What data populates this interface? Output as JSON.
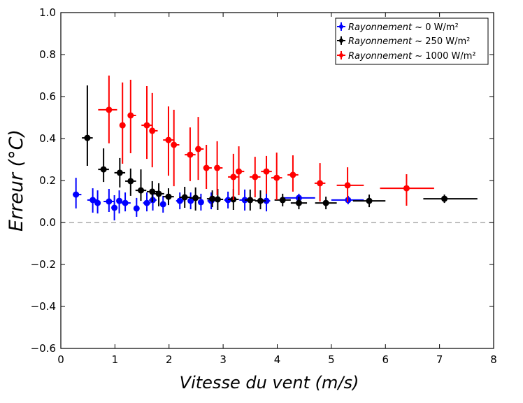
{
  "chart_data": {
    "type": "scatter",
    "title": "",
    "xlabel": "Vitesse du vent (m/s)",
    "ylabel": "Erreur (°C)",
    "xlim": [
      0,
      8
    ],
    "ylim": [
      -0.6,
      1.0
    ],
    "xticks": [
      "0",
      "1",
      "2",
      "3",
      "4",
      "5",
      "6",
      "7",
      "8"
    ],
    "yticks": [
      "−0.6",
      "−0.4",
      "−0.2",
      "0.0",
      "0.2",
      "0.4",
      "0.6",
      "0.8",
      "1.0"
    ],
    "xtick_values": [
      0,
      1,
      2,
      3,
      4,
      5,
      6,
      7,
      8
    ],
    "ytick_values": [
      -0.6,
      -0.4,
      -0.2,
      0.0,
      0.2,
      0.4,
      0.6,
      0.8,
      1.0
    ],
    "grid": false,
    "reference_line": {
      "y": 0.0,
      "style": "dashed",
      "color": "#999999"
    },
    "legend_position": "top-right",
    "series": [
      {
        "name": "Rayonnement ~ 0 W/m²",
        "legend_italic": "Rayonnement",
        "legend_rest": " ~ 0 W/m²",
        "color": "#0000ff",
        "points": [
          {
            "x": 0.28,
            "y": 0.133,
            "ylo": 0.067,
            "yhi": 0.213,
            "xlo": 0.22,
            "xhi": 0.38
          },
          {
            "x": 0.59,
            "y": 0.107,
            "ylo": 0.047,
            "yhi": 0.163,
            "xlo": 0.49,
            "xhi": 0.69
          },
          {
            "x": 0.68,
            "y": 0.093,
            "ylo": 0.043,
            "yhi": 0.153,
            "xlo": 0.63,
            "xhi": 0.73
          },
          {
            "x": 0.89,
            "y": 0.1,
            "ylo": 0.05,
            "yhi": 0.16,
            "xlo": 0.79,
            "xhi": 0.99
          },
          {
            "x": 0.99,
            "y": 0.07,
            "ylo": 0.01,
            "yhi": 0.13,
            "xlo": 0.94,
            "xhi": 1.04
          },
          {
            "x": 1.08,
            "y": 0.103,
            "ylo": 0.043,
            "yhi": 0.153,
            "xlo": 1.03,
            "xhi": 1.13
          },
          {
            "x": 1.19,
            "y": 0.093,
            "ylo": 0.053,
            "yhi": 0.143,
            "xlo": 1.12,
            "xhi": 1.29
          },
          {
            "x": 1.4,
            "y": 0.067,
            "ylo": 0.027,
            "yhi": 0.117,
            "xlo": 1.35,
            "xhi": 1.45
          },
          {
            "x": 1.59,
            "y": 0.093,
            "ylo": 0.053,
            "yhi": 0.143,
            "xlo": 1.52,
            "xhi": 1.66
          },
          {
            "x": 1.7,
            "y": 0.107,
            "ylo": 0.057,
            "yhi": 0.157,
            "xlo": 1.63,
            "xhi": 1.77
          },
          {
            "x": 1.89,
            "y": 0.087,
            "ylo": 0.047,
            "yhi": 0.127,
            "xlo": 1.84,
            "xhi": 1.94
          },
          {
            "x": 2.2,
            "y": 0.103,
            "ylo": 0.063,
            "yhi": 0.143,
            "xlo": 2.13,
            "xhi": 2.27
          },
          {
            "x": 2.4,
            "y": 0.103,
            "ylo": 0.063,
            "yhi": 0.143,
            "xlo": 2.35,
            "xhi": 2.45
          },
          {
            "x": 2.59,
            "y": 0.097,
            "ylo": 0.057,
            "yhi": 0.137,
            "xlo": 2.54,
            "xhi": 2.64
          },
          {
            "x": 2.78,
            "y": 0.103,
            "ylo": 0.063,
            "yhi": 0.143,
            "xlo": 2.71,
            "xhi": 2.85
          },
          {
            "x": 3.09,
            "y": 0.107,
            "ylo": 0.067,
            "yhi": 0.147,
            "xlo": 3.02,
            "xhi": 3.16
          },
          {
            "x": 3.4,
            "y": 0.107,
            "ylo": 0.057,
            "yhi": 0.157,
            "xlo": 3.3,
            "xhi": 3.5
          },
          {
            "x": 3.8,
            "y": 0.103,
            "ylo": 0.053,
            "yhi": 0.153,
            "xlo": 3.73,
            "xhi": 3.87
          },
          {
            "x": 4.4,
            "y": 0.117,
            "ylo": 0.097,
            "yhi": 0.137,
            "xlo": 4.1,
            "xhi": 4.7
          },
          {
            "x": 5.31,
            "y": 0.107,
            "ylo": 0.087,
            "yhi": 0.127,
            "xlo": 5.0,
            "xhi": 5.6
          }
        ]
      },
      {
        "name": "Rayonnement ~ 250 W/m²",
        "legend_italic": "Rayonnement",
        "legend_rest": " ~ 250 W/m²",
        "color": "#000000",
        "points": [
          {
            "x": 0.49,
            "y": 0.403,
            "ylo": 0.27,
            "yhi": 0.653,
            "xlo": 0.39,
            "xhi": 0.59
          },
          {
            "x": 0.79,
            "y": 0.253,
            "ylo": 0.193,
            "yhi": 0.353,
            "xlo": 0.69,
            "xhi": 0.89
          },
          {
            "x": 1.09,
            "y": 0.237,
            "ylo": 0.167,
            "yhi": 0.307,
            "xlo": 0.99,
            "xhi": 1.19
          },
          {
            "x": 1.29,
            "y": 0.197,
            "ylo": 0.127,
            "yhi": 0.257,
            "xlo": 1.19,
            "xhi": 1.39
          },
          {
            "x": 1.48,
            "y": 0.153,
            "ylo": 0.103,
            "yhi": 0.253,
            "xlo": 1.38,
            "xhi": 1.58
          },
          {
            "x": 1.69,
            "y": 0.147,
            "ylo": 0.097,
            "yhi": 0.197,
            "xlo": 1.59,
            "xhi": 1.79
          },
          {
            "x": 1.81,
            "y": 0.137,
            "ylo": 0.077,
            "yhi": 0.187,
            "xlo": 1.71,
            "xhi": 1.91
          },
          {
            "x": 1.99,
            "y": 0.123,
            "ylo": 0.083,
            "yhi": 0.163,
            "xlo": 1.89,
            "xhi": 2.09
          },
          {
            "x": 2.29,
            "y": 0.12,
            "ylo": 0.07,
            "yhi": 0.17,
            "xlo": 2.19,
            "xhi": 2.39
          },
          {
            "x": 2.49,
            "y": 0.117,
            "ylo": 0.057,
            "yhi": 0.167,
            "xlo": 2.39,
            "xhi": 2.59
          },
          {
            "x": 2.9,
            "y": 0.11,
            "ylo": 0.06,
            "yhi": 0.16,
            "xlo": 2.8,
            "xhi": 3.0
          },
          {
            "x": 2.8,
            "y": 0.113,
            "ylo": 0.073,
            "yhi": 0.153,
            "xlo": 2.7,
            "xhi": 2.9
          },
          {
            "x": 3.19,
            "y": 0.11,
            "ylo": 0.06,
            "yhi": 0.16,
            "xlo": 3.09,
            "xhi": 3.29
          },
          {
            "x": 3.5,
            "y": 0.107,
            "ylo": 0.057,
            "yhi": 0.157,
            "xlo": 3.4,
            "xhi": 3.6
          },
          {
            "x": 3.69,
            "y": 0.103,
            "ylo": 0.063,
            "yhi": 0.153,
            "xlo": 3.59,
            "xhi": 3.79
          },
          {
            "x": 4.1,
            "y": 0.107,
            "ylo": 0.077,
            "yhi": 0.137,
            "xlo": 3.95,
            "xhi": 4.25
          },
          {
            "x": 4.4,
            "y": 0.093,
            "ylo": 0.063,
            "yhi": 0.123,
            "xlo": 4.25,
            "xhi": 4.55
          },
          {
            "x": 4.9,
            "y": 0.093,
            "ylo": 0.063,
            "yhi": 0.123,
            "xlo": 4.7,
            "xhi": 5.1
          },
          {
            "x": 5.7,
            "y": 0.103,
            "ylo": 0.073,
            "yhi": 0.133,
            "xlo": 5.4,
            "xhi": 6.0
          },
          {
            "x": 7.09,
            "y": 0.113,
            "ylo": 0.093,
            "yhi": 0.133,
            "xlo": 6.7,
            "xhi": 7.7
          }
        ]
      },
      {
        "name": "Rayonnement ~ 1000 W/m²",
        "legend_italic": "Rayonnement",
        "legend_rest": " ~ 1000 W/m²",
        "color": "#ff0000",
        "points": [
          {
            "x": 0.89,
            "y": 0.537,
            "ylo": 0.377,
            "yhi": 0.7,
            "xlo": 0.69,
            "xhi": 1.04
          },
          {
            "x": 1.14,
            "y": 0.463,
            "ylo": 0.28,
            "yhi": 0.667,
            "xlo": 1.09,
            "xhi": 1.19
          },
          {
            "x": 1.29,
            "y": 0.51,
            "ylo": 0.33,
            "yhi": 0.68,
            "xlo": 1.24,
            "xhi": 1.39
          },
          {
            "x": 1.59,
            "y": 0.463,
            "ylo": 0.303,
            "yhi": 0.65,
            "xlo": 1.49,
            "xhi": 1.69
          },
          {
            "x": 1.69,
            "y": 0.437,
            "ylo": 0.263,
            "yhi": 0.617,
            "xlo": 1.64,
            "xhi": 1.79
          },
          {
            "x": 1.99,
            "y": 0.393,
            "ylo": 0.223,
            "yhi": 0.553,
            "xlo": 1.89,
            "xhi": 2.09
          },
          {
            "x": 2.09,
            "y": 0.37,
            "ylo": 0.173,
            "yhi": 0.537,
            "xlo": 2.04,
            "xhi": 2.19
          },
          {
            "x": 2.39,
            "y": 0.323,
            "ylo": 0.197,
            "yhi": 0.453,
            "xlo": 2.29,
            "xhi": 2.49
          },
          {
            "x": 2.54,
            "y": 0.35,
            "ylo": 0.203,
            "yhi": 0.503,
            "xlo": 2.49,
            "xhi": 2.64
          },
          {
            "x": 2.69,
            "y": 0.26,
            "ylo": 0.16,
            "yhi": 0.37,
            "xlo": 2.64,
            "xhi": 2.79
          },
          {
            "x": 2.89,
            "y": 0.26,
            "ylo": 0.13,
            "yhi": 0.387,
            "xlo": 2.84,
            "xhi": 2.99
          },
          {
            "x": 3.19,
            "y": 0.217,
            "ylo": 0.107,
            "yhi": 0.327,
            "xlo": 3.09,
            "xhi": 3.29
          },
          {
            "x": 3.29,
            "y": 0.243,
            "ylo": 0.13,
            "yhi": 0.363,
            "xlo": 3.24,
            "xhi": 3.39
          },
          {
            "x": 3.59,
            "y": 0.217,
            "ylo": 0.12,
            "yhi": 0.313,
            "xlo": 3.49,
            "xhi": 3.69
          },
          {
            "x": 3.8,
            "y": 0.243,
            "ylo": 0.137,
            "yhi": 0.317,
            "xlo": 3.7,
            "xhi": 3.9
          },
          {
            "x": 3.99,
            "y": 0.213,
            "ylo": 0.107,
            "yhi": 0.333,
            "xlo": 3.89,
            "xhi": 4.09
          },
          {
            "x": 4.29,
            "y": 0.227,
            "ylo": 0.147,
            "yhi": 0.32,
            "xlo": 4.19,
            "xhi": 4.39
          },
          {
            "x": 4.79,
            "y": 0.187,
            "ylo": 0.1,
            "yhi": 0.283,
            "xlo": 4.69,
            "xhi": 4.89
          },
          {
            "x": 5.3,
            "y": 0.177,
            "ylo": 0.097,
            "yhi": 0.263,
            "xlo": 5.1,
            "xhi": 5.6
          },
          {
            "x": 6.39,
            "y": 0.163,
            "ylo": 0.08,
            "yhi": 0.23,
            "xlo": 5.9,
            "xhi": 6.9
          }
        ]
      }
    ]
  }
}
